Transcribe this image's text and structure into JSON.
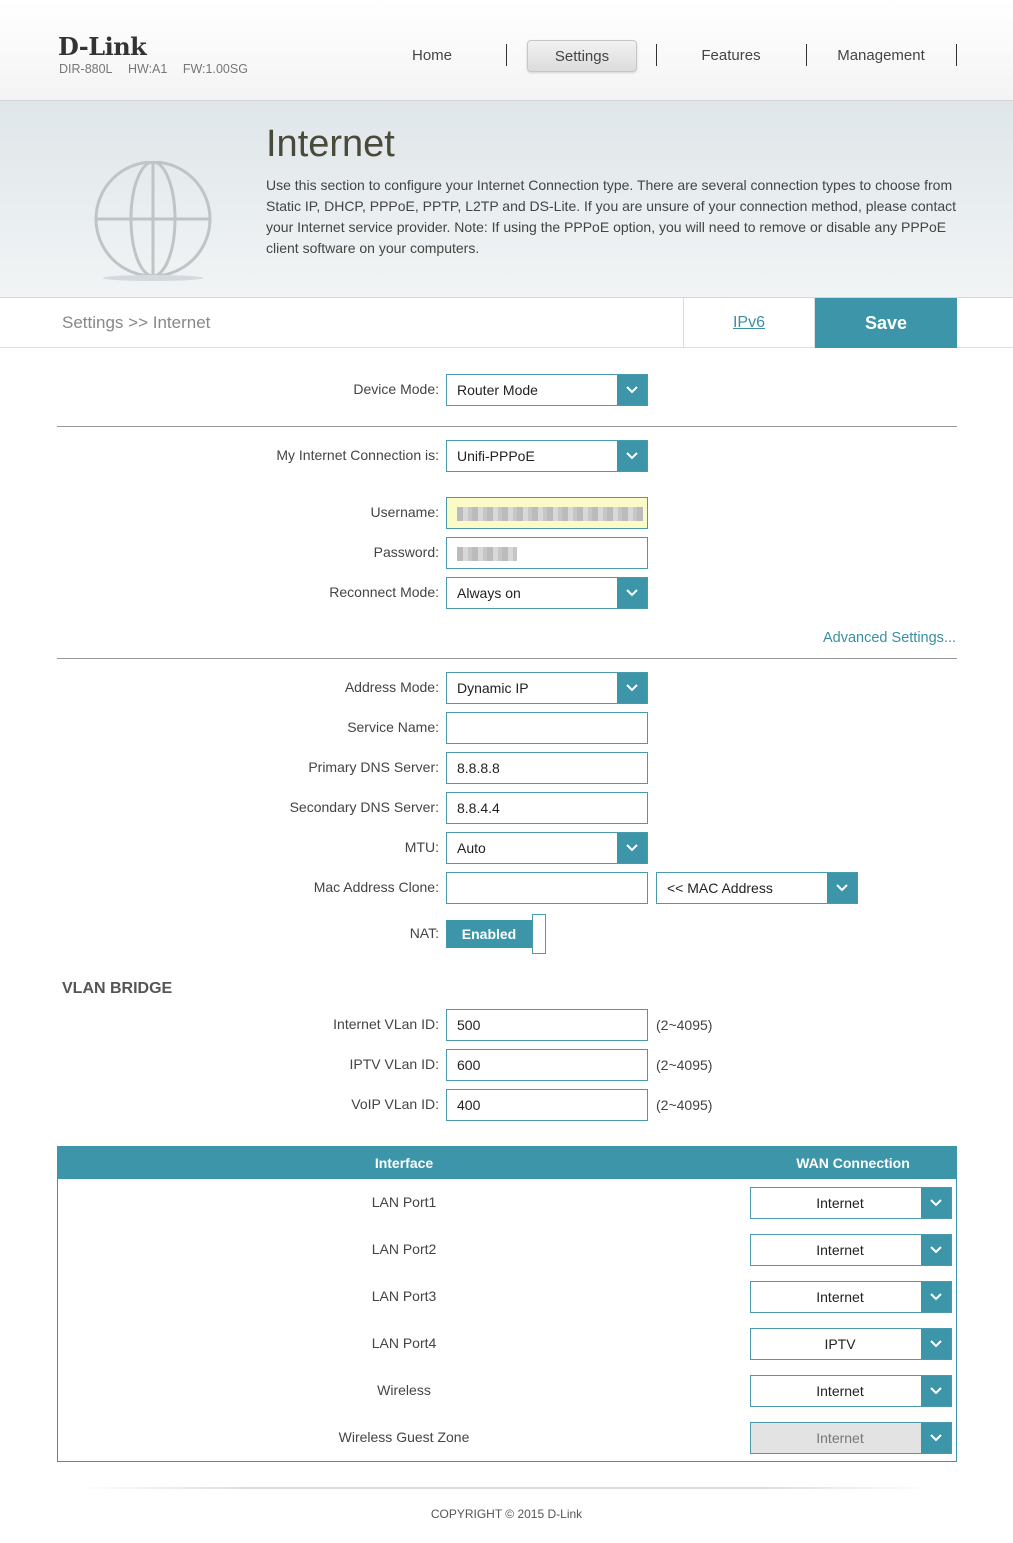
{
  "header": {
    "logo": "D-Link",
    "model": "DIR-880L",
    "hw": "HW:A1",
    "fw": "FW:1.00SG",
    "nav": [
      "Home",
      "Settings",
      "Features",
      "Management"
    ]
  },
  "banner": {
    "title": "Internet",
    "description": "Use this section to configure your Internet Connection type. There are several connection types to choose from Static IP, DHCP, PPPoE, PPTP, L2TP and DS-Lite. If you are unsure of your connection method, please contact your Internet service provider. Note: If using the PPPoE option, you will need to remove or disable any PPPoE client software on your computers."
  },
  "breadcrumb": {
    "text": "Settings >> Internet",
    "ipv6_link": "IPv6",
    "save_label": "Save"
  },
  "form": {
    "device_mode_label": "Device Mode:",
    "device_mode_value": "Router Mode",
    "connection_label": "My Internet Connection is:",
    "connection_value": "Unifi-PPPoE",
    "username_label": "Username:",
    "password_label": "Password:",
    "reconnect_label": "Reconnect Mode:",
    "reconnect_value": "Always on",
    "advanced_link": "Advanced Settings...",
    "address_mode_label": "Address Mode:",
    "address_mode_value": "Dynamic IP",
    "service_name_label": "Service Name:",
    "service_name_value": "",
    "primary_dns_label": "Primary DNS Server:",
    "primary_dns_value": "8.8.8.8",
    "secondary_dns_label": "Secondary DNS Server:",
    "secondary_dns_value": "8.8.4.4",
    "mtu_label": "MTU:",
    "mtu_value": "Auto",
    "mac_clone_label": "Mac Address Clone:",
    "mac_clone_value": "",
    "mac_select_value": "<< MAC Address",
    "nat_label": "NAT:",
    "nat_value": "Enabled"
  },
  "vlan": {
    "title": "VLAN BRIDGE",
    "internet_label": "Internet VLan ID:",
    "internet_value": "500",
    "iptv_label": "IPTV VLan ID:",
    "iptv_value": "600",
    "voip_label": "VoIP VLan ID:",
    "voip_value": "400",
    "range": "(2~4095)"
  },
  "table": {
    "headers": [
      "Interface",
      "WAN Connection"
    ],
    "rows": [
      {
        "interface": "LAN Port1",
        "wan": "Internet"
      },
      {
        "interface": "LAN Port2",
        "wan": "Internet"
      },
      {
        "interface": "LAN Port3",
        "wan": "Internet"
      },
      {
        "interface": "LAN Port4",
        "wan": "IPTV"
      },
      {
        "interface": "Wireless",
        "wan": "Internet"
      },
      {
        "interface": "Wireless Guest Zone",
        "wan": "Internet"
      }
    ]
  },
  "footer": {
    "copyright": "COPYRIGHT © 2015 D-Link"
  },
  "colors": {
    "accent": "#3c95a9",
    "link": "#3a8fa3"
  }
}
